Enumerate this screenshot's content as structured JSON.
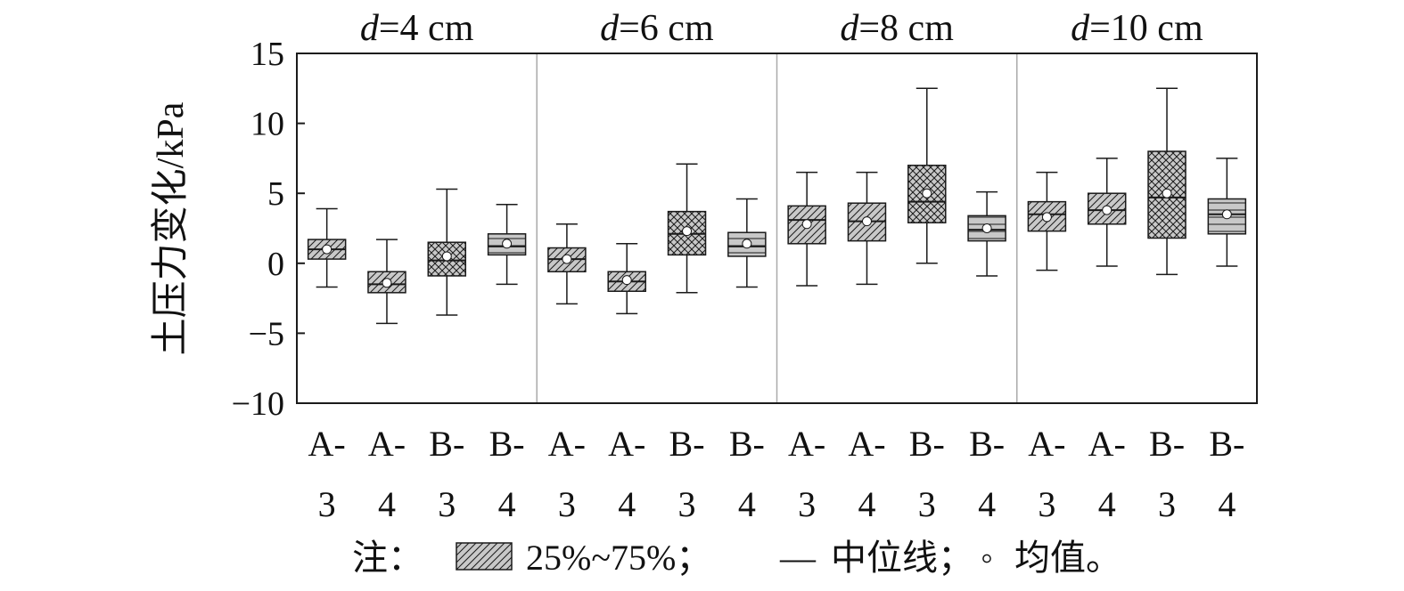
{
  "chart_data": {
    "type": "box",
    "ylabel": "土压力变化/kPa",
    "ylim": [
      -10,
      15
    ],
    "yticks": [
      -10,
      -5,
      0,
      5,
      10,
      15
    ],
    "ytick_labels": [
      "−10",
      "−5",
      "0",
      "5",
      "10",
      "15"
    ],
    "grid": false,
    "groups": [
      {
        "label_var": "d",
        "label_rest": "=4 cm",
        "boxes": [
          {
            "cat_top": "A-",
            "cat_bottom": "3",
            "pattern": "diag",
            "min": -1.7,
            "q1": 0.3,
            "median": 1.0,
            "q3": 1.7,
            "max": 3.9,
            "mean": 1.0
          },
          {
            "cat_top": "A-",
            "cat_bottom": "4",
            "pattern": "diag",
            "min": -4.3,
            "q1": -2.1,
            "median": -1.5,
            "q3": -0.6,
            "max": 1.7,
            "mean": -1.4
          },
          {
            "cat_top": "B-",
            "cat_bottom": "3",
            "pattern": "cross",
            "min": -3.7,
            "q1": -0.9,
            "median": 0.2,
            "q3": 1.5,
            "max": 5.3,
            "mean": 0.5
          },
          {
            "cat_top": "B-",
            "cat_bottom": "4",
            "pattern": "horiz",
            "min": -1.5,
            "q1": 0.6,
            "median": 1.2,
            "q3": 2.1,
            "max": 4.2,
            "mean": 1.4
          }
        ]
      },
      {
        "label_var": "d",
        "label_rest": "=6 cm",
        "boxes": [
          {
            "cat_top": "A-",
            "cat_bottom": "3",
            "pattern": "diag",
            "min": -2.9,
            "q1": -0.6,
            "median": 0.3,
            "q3": 1.1,
            "max": 2.8,
            "mean": 0.3
          },
          {
            "cat_top": "A-",
            "cat_bottom": "4",
            "pattern": "diag",
            "min": -3.6,
            "q1": -2.0,
            "median": -1.3,
            "q3": -0.6,
            "max": 1.4,
            "mean": -1.2
          },
          {
            "cat_top": "B-",
            "cat_bottom": "3",
            "pattern": "cross",
            "min": -2.1,
            "q1": 0.6,
            "median": 2.1,
            "q3": 3.7,
            "max": 7.1,
            "mean": 2.3
          },
          {
            "cat_top": "B-",
            "cat_bottom": "4",
            "pattern": "horiz",
            "min": -1.7,
            "q1": 0.5,
            "median": 1.2,
            "q3": 2.2,
            "max": 4.6,
            "mean": 1.4
          }
        ]
      },
      {
        "label_var": "d",
        "label_rest": "=8 cm",
        "boxes": [
          {
            "cat_top": "A-",
            "cat_bottom": "3",
            "pattern": "diag",
            "min": -1.6,
            "q1": 1.4,
            "median": 3.1,
            "q3": 4.1,
            "max": 6.5,
            "mean": 2.8
          },
          {
            "cat_top": "A-",
            "cat_bottom": "4",
            "pattern": "diag",
            "min": -1.5,
            "q1": 1.6,
            "median": 3.0,
            "q3": 4.3,
            "max": 6.5,
            "mean": 3.0
          },
          {
            "cat_top": "B-",
            "cat_bottom": "3",
            "pattern": "cross",
            "min": 0.0,
            "q1": 2.9,
            "median": 4.4,
            "q3": 7.0,
            "max": 12.5,
            "mean": 5.0
          },
          {
            "cat_top": "B-",
            "cat_bottom": "4",
            "pattern": "horiz",
            "min": -0.9,
            "q1": 1.6,
            "median": 2.4,
            "q3": 3.4,
            "max": 5.1,
            "mean": 2.5
          }
        ]
      },
      {
        "label_var": "d",
        "label_rest": "=10 cm",
        "boxes": [
          {
            "cat_top": "A-",
            "cat_bottom": "3",
            "pattern": "diag",
            "min": -0.5,
            "q1": 2.3,
            "median": 3.5,
            "q3": 4.4,
            "max": 6.5,
            "mean": 3.3
          },
          {
            "cat_top": "A-",
            "cat_bottom": "4",
            "pattern": "diag",
            "min": -0.2,
            "q1": 2.8,
            "median": 3.8,
            "q3": 5.0,
            "max": 7.5,
            "mean": 3.8
          },
          {
            "cat_top": "B-",
            "cat_bottom": "3",
            "pattern": "cross",
            "min": -0.8,
            "q1": 1.8,
            "median": 4.7,
            "q3": 8.0,
            "max": 12.5,
            "mean": 5.0
          },
          {
            "cat_top": "B-",
            "cat_bottom": "4",
            "pattern": "horiz",
            "min": -0.2,
            "q1": 2.1,
            "median": 3.5,
            "q3": 4.6,
            "max": 7.5,
            "mean": 3.5
          }
        ]
      }
    ],
    "note": {
      "prefix": "注：",
      "box_label": "25%~75%；",
      "median_symbol": "—",
      "median_label": "中位线；",
      "mean_symbol": "◦",
      "mean_label": "均值。"
    },
    "colors": {
      "box_fill": "#c8c8c8",
      "stroke": "#1a1a1a",
      "separator": "#aaaaaa",
      "mean_marker": "#ffffff"
    }
  }
}
